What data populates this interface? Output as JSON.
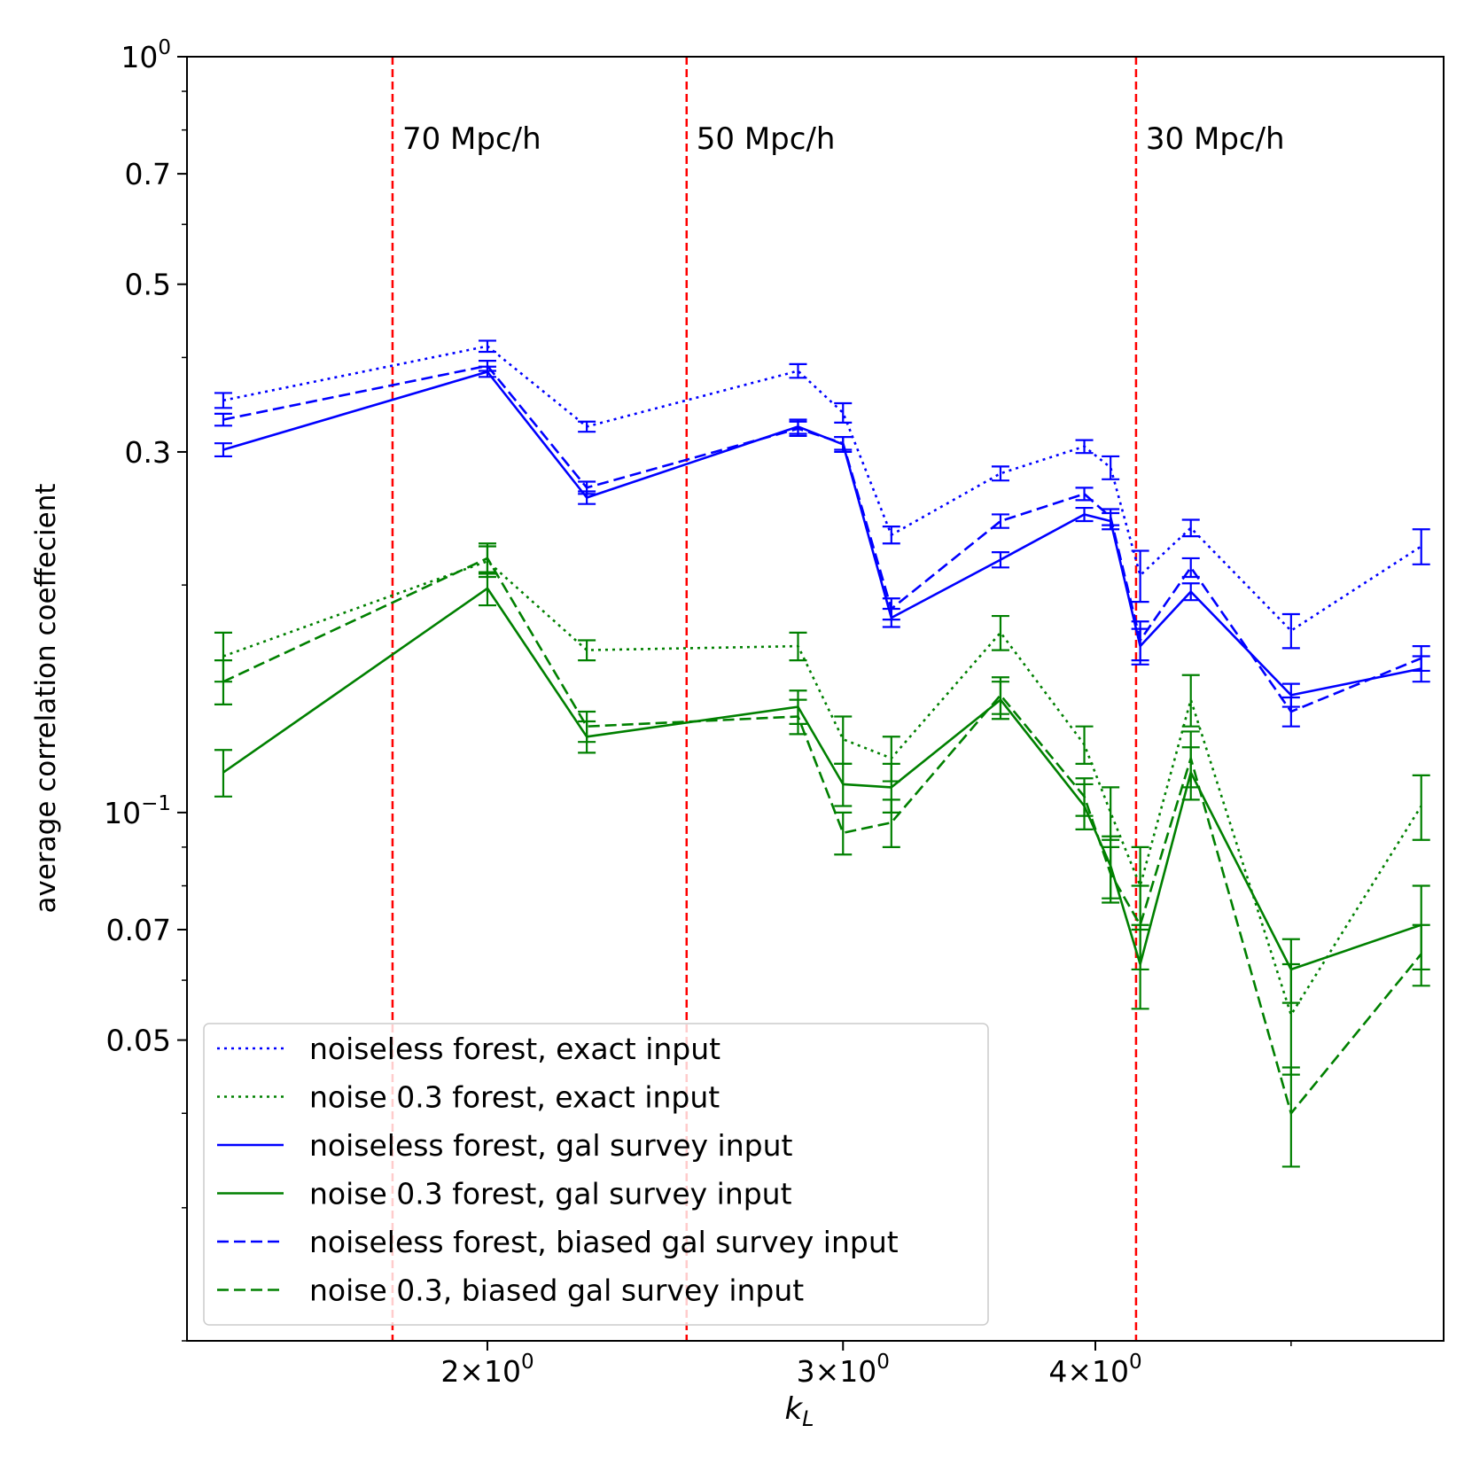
{
  "chart_data": {
    "type": "line",
    "xscale": "log",
    "yscale": "log",
    "xlabel_main": "k",
    "xlabel_sub": "L",
    "ylabel": "average correlation coeffecient",
    "xlim": [
      1.42,
      5.95
    ],
    "ylim": [
      0.02,
      1.0
    ],
    "x_ticks": [
      {
        "value": 2,
        "mant": "2×10",
        "exp": "0"
      },
      {
        "value": 3,
        "mant": "3×10",
        "exp": "0"
      },
      {
        "value": 4,
        "mant": "4×10",
        "exp": "0"
      }
    ],
    "y_ticks": [
      {
        "value": 1.0,
        "label": "10",
        "exp": "0"
      },
      {
        "value": 0.7,
        "label": "0.7",
        "exp": ""
      },
      {
        "value": 0.5,
        "label": "0.5",
        "exp": ""
      },
      {
        "value": 0.3,
        "label": "0.3",
        "exp": ""
      },
      {
        "value": 0.1,
        "label": "10",
        "exp": "−1"
      },
      {
        "value": 0.07,
        "label": "0.07",
        "exp": ""
      },
      {
        "value": 0.05,
        "label": "0.05",
        "exp": ""
      }
    ],
    "y_minor_ticks": [
      0.9,
      0.8,
      0.6,
      0.4,
      0.2,
      0.09,
      0.08,
      0.06,
      0.04,
      0.03,
      0.02
    ],
    "x_minor_ticks": [
      5
    ],
    "vlines": [
      {
        "x": 1.795,
        "label": "70 Mpc/h"
      },
      {
        "x": 2.51,
        "label": "50 Mpc/h"
      },
      {
        "x": 4.19,
        "label": "30 Mpc/h"
      }
    ],
    "x": [
      1.48,
      2.0,
      2.24,
      2.85,
      3.0,
      3.17,
      3.59,
      3.95,
      4.07,
      4.21,
      4.46,
      5.0,
      5.8
    ],
    "series": [
      {
        "name": "noiseless forest, exact input",
        "color": "#0000ff",
        "dash": "dotted",
        "values": [
          0.351,
          0.414,
          0.324,
          0.384,
          0.338,
          0.233,
          0.281,
          0.305,
          0.286,
          0.206,
          0.238,
          0.174,
          0.225
        ],
        "errors": [
          0.008,
          0.007,
          0.005,
          0.008,
          0.01,
          0.006,
          0.006,
          0.006,
          0.01,
          0.016,
          0.006,
          0.009,
          0.012
        ]
      },
      {
        "name": "noise 0.3 forest, exact input",
        "color": "#008000",
        "dash": "dotted",
        "values": [
          0.161,
          0.215,
          0.164,
          0.166,
          0.125,
          0.118,
          0.173,
          0.123,
          0.1,
          0.08,
          0.141,
          0.054,
          0.102
        ],
        "errors": [
          0.012,
          0.01,
          0.005,
          0.007,
          0.009,
          0.008,
          0.009,
          0.007,
          0.008,
          0.01,
          0.011,
          0.009,
          0.01
        ]
      },
      {
        "name": "noiseless forest, gal survey input",
        "color": "#0000ff",
        "dash": "solid",
        "values": [
          0.302,
          0.383,
          0.261,
          0.324,
          0.307,
          0.181,
          0.216,
          0.248,
          0.243,
          0.166,
          0.196,
          0.143,
          0.155
        ],
        "errors": [
          0.006,
          0.006,
          0.005,
          0.007,
          0.007,
          0.005,
          0.005,
          0.005,
          0.006,
          0.009,
          0.005,
          0.005,
          0.006
        ]
      },
      {
        "name": "noise 0.3 forest, gal survey input",
        "color": "#008000",
        "dash": "solid",
        "values": [
          0.113,
          0.198,
          0.126,
          0.138,
          0.109,
          0.108,
          0.141,
          0.102,
          0.085,
          0.063,
          0.113,
          0.062,
          0.071
        ],
        "errors": [
          0.008,
          0.01,
          0.006,
          0.007,
          0.007,
          0.008,
          0.008,
          0.007,
          0.008,
          0.008,
          0.009,
          0.006,
          0.009
        ]
      },
      {
        "name": "noiseless forest, biased gal survey input",
        "color": "#0000ff",
        "dash": "dashed",
        "values": [
          0.331,
          0.39,
          0.269,
          0.322,
          0.308,
          0.186,
          0.243,
          0.264,
          0.246,
          0.169,
          0.211,
          0.136,
          0.16
        ],
        "errors": [
          0.006,
          0.006,
          0.005,
          0.007,
          0.006,
          0.006,
          0.005,
          0.005,
          0.006,
          0.01,
          0.006,
          0.006,
          0.006
        ]
      },
      {
        "name": "noise 0.3, biased gal survey input",
        "color": "#008000",
        "dash": "dashed",
        "values": [
          0.149,
          0.217,
          0.13,
          0.134,
          0.094,
          0.097,
          0.143,
          0.105,
          0.083,
          0.071,
          0.118,
          0.04,
          0.065
        ],
        "errors": [
          0.01,
          0.01,
          0.006,
          0.007,
          0.006,
          0.007,
          0.008,
          0.006,
          0.007,
          0.009,
          0.01,
          0.006,
          0.006
        ]
      }
    ],
    "legend": "lower-left"
  }
}
